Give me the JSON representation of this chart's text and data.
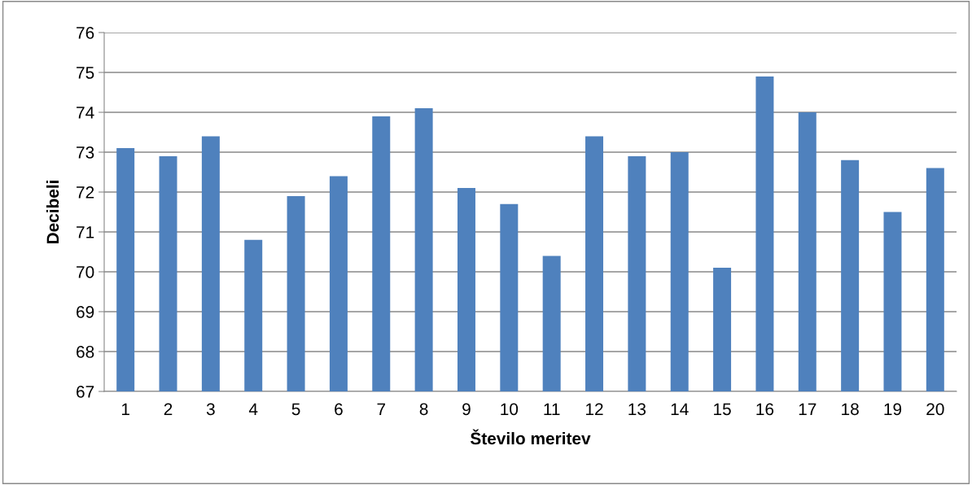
{
  "chart_data": {
    "type": "bar",
    "xlabel": "Število meritev",
    "ylabel": "Decibeli",
    "categories": [
      "1",
      "2",
      "3",
      "4",
      "5",
      "6",
      "7",
      "8",
      "9",
      "10",
      "11",
      "12",
      "13",
      "14",
      "15",
      "16",
      "17",
      "18",
      "19",
      "20"
    ],
    "values": [
      73.1,
      72.9,
      73.4,
      70.8,
      71.9,
      72.4,
      73.9,
      74.1,
      72.1,
      71.7,
      70.4,
      73.4,
      72.9,
      73.0,
      70.1,
      74.9,
      74.0,
      72.8,
      71.5,
      72.6
    ],
    "color": "#4f81bd",
    "ylim": [
      67,
      76
    ],
    "yticks": [
      67,
      68,
      69,
      70,
      71,
      72,
      73,
      74,
      75,
      76
    ],
    "grid": "y",
    "legend": false
  }
}
